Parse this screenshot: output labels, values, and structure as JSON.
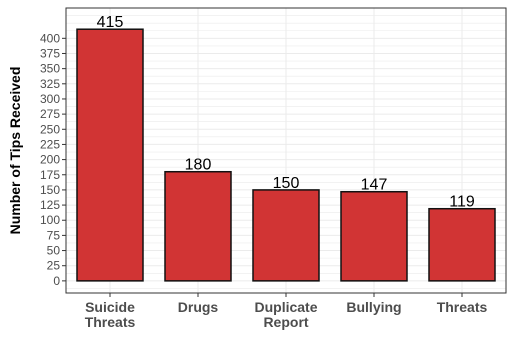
{
  "chart_data": {
    "type": "bar",
    "title": "",
    "xlabel": "",
    "ylabel": "Number of Tips Received",
    "categories": [
      [
        "Suicide",
        "Threats"
      ],
      [
        "Drugs"
      ],
      [
        "Duplicate",
        "Report"
      ],
      [
        "Bullying"
      ],
      [
        "Threats"
      ]
    ],
    "values": [
      415,
      180,
      150,
      147,
      119
    ],
    "data_labels": [
      "415",
      "180",
      "150",
      "147",
      "119"
    ],
    "ylim": [
      -20,
      450
    ],
    "yticks": [
      0,
      25,
      50,
      75,
      100,
      125,
      150,
      175,
      200,
      225,
      250,
      275,
      300,
      325,
      350,
      375,
      400
    ],
    "grid": true,
    "legend": "none",
    "colors": {
      "bar_fill": "#d13434",
      "bar_stroke": "#111111",
      "grid": "#ebebeb",
      "panel_border": "#333333",
      "text": "#4d4d4d",
      "label_text": "#000000"
    }
  }
}
